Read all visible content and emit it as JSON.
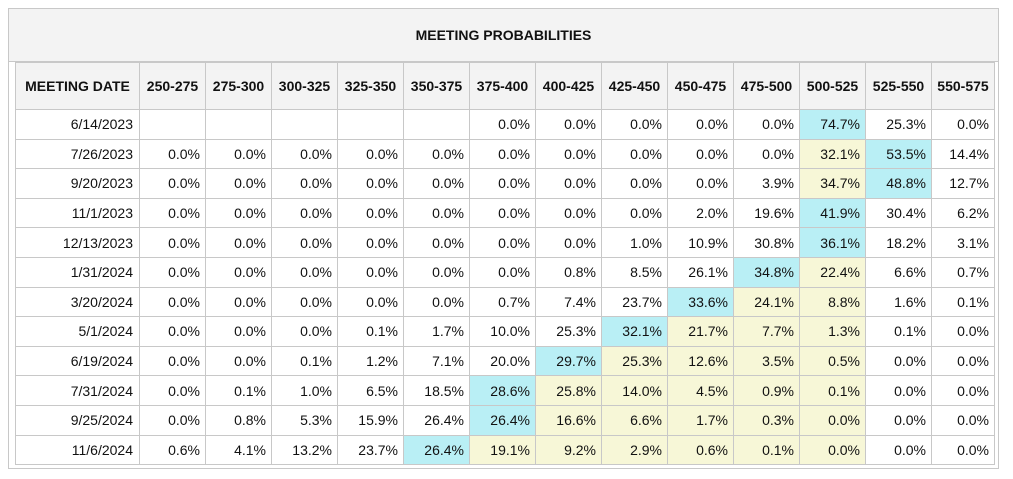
{
  "title": "MEETING PROBABILITIES",
  "header": {
    "date_label": "MEETING DATE",
    "ranges": [
      "250-275",
      "275-300",
      "300-325",
      "325-350",
      "350-375",
      "375-400",
      "400-425",
      "425-450",
      "450-475",
      "475-500",
      "500-525",
      "525-550",
      "550-575"
    ]
  },
  "colors": {
    "highlight_max": "#b9eff5",
    "highlight_band": "#f7f7d7",
    "header_bg": "#f3f3f3",
    "border": "#c8c8c8"
  },
  "rows": [
    {
      "date": "6/14/2023",
      "cells": [
        "",
        "",
        "",
        "",
        "",
        "0.0%",
        "0.0%",
        "0.0%",
        "0.0%",
        "0.0%",
        "74.7%",
        "25.3%",
        "0.0%"
      ],
      "blue": [
        10
      ],
      "yellow": []
    },
    {
      "date": "7/26/2023",
      "cells": [
        "0.0%",
        "0.0%",
        "0.0%",
        "0.0%",
        "0.0%",
        "0.0%",
        "0.0%",
        "0.0%",
        "0.0%",
        "0.0%",
        "32.1%",
        "53.5%",
        "14.4%"
      ],
      "blue": [
        11
      ],
      "yellow": [
        10
      ]
    },
    {
      "date": "9/20/2023",
      "cells": [
        "0.0%",
        "0.0%",
        "0.0%",
        "0.0%",
        "0.0%",
        "0.0%",
        "0.0%",
        "0.0%",
        "0.0%",
        "3.9%",
        "34.7%",
        "48.8%",
        "12.7%"
      ],
      "blue": [
        11
      ],
      "yellow": [
        10
      ]
    },
    {
      "date": "11/1/2023",
      "cells": [
        "0.0%",
        "0.0%",
        "0.0%",
        "0.0%",
        "0.0%",
        "0.0%",
        "0.0%",
        "0.0%",
        "2.0%",
        "19.6%",
        "41.9%",
        "30.4%",
        "6.2%"
      ],
      "blue": [
        10
      ],
      "yellow": []
    },
    {
      "date": "12/13/2023",
      "cells": [
        "0.0%",
        "0.0%",
        "0.0%",
        "0.0%",
        "0.0%",
        "0.0%",
        "0.0%",
        "1.0%",
        "10.9%",
        "30.8%",
        "36.1%",
        "18.2%",
        "3.1%"
      ],
      "blue": [
        10
      ],
      "yellow": []
    },
    {
      "date": "1/31/2024",
      "cells": [
        "0.0%",
        "0.0%",
        "0.0%",
        "0.0%",
        "0.0%",
        "0.0%",
        "0.8%",
        "8.5%",
        "26.1%",
        "34.8%",
        "22.4%",
        "6.6%",
        "0.7%"
      ],
      "blue": [
        9
      ],
      "yellow": [
        10
      ]
    },
    {
      "date": "3/20/2024",
      "cells": [
        "0.0%",
        "0.0%",
        "0.0%",
        "0.0%",
        "0.0%",
        "0.7%",
        "7.4%",
        "23.7%",
        "33.6%",
        "24.1%",
        "8.8%",
        "1.6%",
        "0.1%"
      ],
      "blue": [
        8
      ],
      "yellow": [
        9,
        10
      ]
    },
    {
      "date": "5/1/2024",
      "cells": [
        "0.0%",
        "0.0%",
        "0.0%",
        "0.1%",
        "1.7%",
        "10.0%",
        "25.3%",
        "32.1%",
        "21.7%",
        "7.7%",
        "1.3%",
        "0.1%",
        "0.0%"
      ],
      "blue": [
        7
      ],
      "yellow": [
        8,
        9,
        10
      ]
    },
    {
      "date": "6/19/2024",
      "cells": [
        "0.0%",
        "0.0%",
        "0.1%",
        "1.2%",
        "7.1%",
        "20.0%",
        "29.7%",
        "25.3%",
        "12.6%",
        "3.5%",
        "0.5%",
        "0.0%",
        "0.0%"
      ],
      "blue": [
        6
      ],
      "yellow": [
        7,
        8,
        9,
        10
      ]
    },
    {
      "date": "7/31/2024",
      "cells": [
        "0.0%",
        "0.1%",
        "1.0%",
        "6.5%",
        "18.5%",
        "28.6%",
        "25.8%",
        "14.0%",
        "4.5%",
        "0.9%",
        "0.1%",
        "0.0%",
        "0.0%"
      ],
      "blue": [
        5
      ],
      "yellow": [
        6,
        7,
        8,
        9,
        10
      ]
    },
    {
      "date": "9/25/2024",
      "cells": [
        "0.0%",
        "0.8%",
        "5.3%",
        "15.9%",
        "26.4%",
        "26.4%",
        "16.6%",
        "6.6%",
        "1.7%",
        "0.3%",
        "0.0%",
        "0.0%",
        "0.0%"
      ],
      "blue": [
        5
      ],
      "yellow": [
        6,
        7,
        8,
        9,
        10
      ]
    },
    {
      "date": "11/6/2024",
      "cells": [
        "0.6%",
        "4.1%",
        "13.2%",
        "23.7%",
        "26.4%",
        "19.1%",
        "9.2%",
        "2.9%",
        "0.6%",
        "0.1%",
        "0.0%",
        "0.0%",
        "0.0%"
      ],
      "blue": [
        4
      ],
      "yellow": [
        5,
        6,
        7,
        8,
        9,
        10
      ]
    }
  ]
}
